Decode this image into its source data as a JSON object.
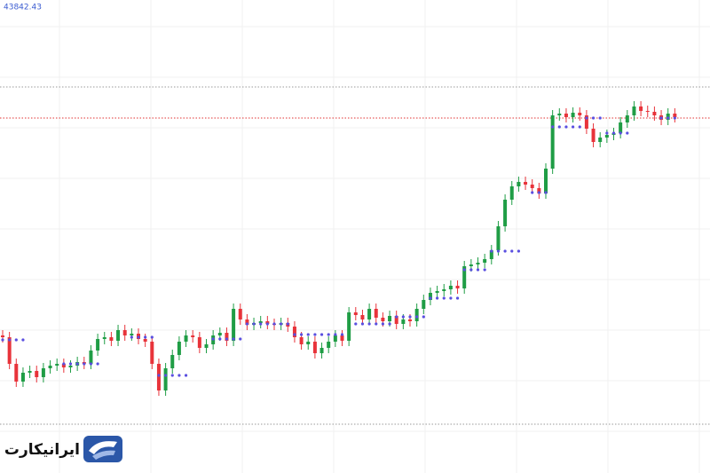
{
  "chart_data": {
    "type": "candlestick",
    "price_label": "43842.43",
    "watermark": "ایرانیکارت",
    "ylim": [
      38570,
      43900
    ],
    "up_color": "#1f9d45",
    "down_color": "#e8333a",
    "sar_color": "#5a4fe0",
    "levels": [
      {
        "value": 42920,
        "color": "#999999"
      },
      {
        "value": 42570,
        "color": "#e03030"
      },
      {
        "value": 39120,
        "color": "#999999"
      }
    ],
    "ohlc": [
      [
        40120,
        40180,
        40040,
        40100
      ],
      [
        40100,
        40160,
        39740,
        39800
      ],
      [
        39800,
        39860,
        39540,
        39600
      ],
      [
        39600,
        39760,
        39540,
        39700
      ],
      [
        39700,
        39780,
        39640,
        39720
      ],
      [
        39720,
        39780,
        39590,
        39650
      ],
      [
        39650,
        39810,
        39590,
        39750
      ],
      [
        39750,
        39840,
        39690,
        39780
      ],
      [
        39780,
        39860,
        39720,
        39800
      ],
      [
        39800,
        39860,
        39700,
        39760
      ],
      [
        39760,
        39840,
        39700,
        39780
      ],
      [
        39780,
        39880,
        39720,
        39820
      ],
      [
        39820,
        39880,
        39740,
        39800
      ],
      [
        39800,
        40010,
        39740,
        39950
      ],
      [
        39950,
        40140,
        39890,
        40080
      ],
      [
        40080,
        40160,
        40020,
        40100
      ],
      [
        40100,
        40160,
        40000,
        40060
      ],
      [
        40060,
        40240,
        40000,
        40180
      ],
      [
        40180,
        40240,
        40060,
        40120
      ],
      [
        40120,
        40200,
        40060,
        40140
      ],
      [
        40140,
        40200,
        40020,
        40080
      ],
      [
        40080,
        40140,
        39990,
        40050
      ],
      [
        40050,
        40110,
        39740,
        39800
      ],
      [
        39800,
        39860,
        39440,
        39500
      ],
      [
        39500,
        39810,
        39440,
        39750
      ],
      [
        39750,
        39960,
        39690,
        39900
      ],
      [
        39900,
        40110,
        39840,
        40050
      ],
      [
        40050,
        40180,
        39990,
        40120
      ],
      [
        40120,
        40180,
        40040,
        40100
      ],
      [
        40100,
        40160,
        39920,
        39980
      ],
      [
        39980,
        40080,
        39920,
        40020
      ],
      [
        40020,
        40180,
        39960,
        40120
      ],
      [
        40120,
        40210,
        40060,
        40150
      ],
      [
        40150,
        40210,
        40000,
        40060
      ],
      [
        40060,
        40480,
        40000,
        40420
      ],
      [
        40420,
        40480,
        40240,
        40300
      ],
      [
        40300,
        40360,
        40180,
        40240
      ],
      [
        40240,
        40320,
        40180,
        40260
      ],
      [
        40260,
        40340,
        40200,
        40280
      ],
      [
        40280,
        40340,
        40190,
        40250
      ],
      [
        40250,
        40310,
        40180,
        40240
      ],
      [
        40240,
        40320,
        40180,
        40260
      ],
      [
        40260,
        40320,
        40160,
        40220
      ],
      [
        40220,
        40280,
        40040,
        40100
      ],
      [
        40100,
        40160,
        39960,
        40020
      ],
      [
        40020,
        40110,
        39960,
        40050
      ],
      [
        40050,
        40110,
        39860,
        39920
      ],
      [
        39920,
        40040,
        39860,
        39980
      ],
      [
        39980,
        40110,
        39920,
        40050
      ],
      [
        40050,
        40180,
        39990,
        40120
      ],
      [
        40120,
        40180,
        40000,
        40060
      ],
      [
        40060,
        40440,
        40000,
        40380
      ],
      [
        40380,
        40440,
        40290,
        40350
      ],
      [
        40350,
        40410,
        40240,
        40300
      ],
      [
        40300,
        40480,
        40240,
        40420
      ],
      [
        40420,
        40480,
        40260,
        40320
      ],
      [
        40320,
        40380,
        40220,
        40280
      ],
      [
        40280,
        40400,
        40220,
        40340
      ],
      [
        40340,
        40400,
        40190,
        40250
      ],
      [
        40250,
        40360,
        40190,
        40300
      ],
      [
        40300,
        40360,
        40220,
        40280
      ],
      [
        40280,
        40480,
        40220,
        40420
      ],
      [
        40420,
        40580,
        40360,
        40520
      ],
      [
        40520,
        40660,
        40460,
        40600
      ],
      [
        40600,
        40680,
        40540,
        40620
      ],
      [
        40620,
        40700,
        40560,
        40640
      ],
      [
        40640,
        40740,
        40580,
        40680
      ],
      [
        40680,
        40740,
        40590,
        40650
      ],
      [
        40650,
        40960,
        40590,
        40900
      ],
      [
        40900,
        40980,
        40840,
        40920
      ],
      [
        40920,
        41000,
        40860,
        40940
      ],
      [
        40940,
        41040,
        40880,
        40980
      ],
      [
        40980,
        41140,
        40920,
        41080
      ],
      [
        41080,
        41410,
        41020,
        41350
      ],
      [
        41350,
        41710,
        41290,
        41650
      ],
      [
        41650,
        41860,
        41590,
        41800
      ],
      [
        41800,
        41910,
        41740,
        41850
      ],
      [
        41850,
        41910,
        41760,
        41820
      ],
      [
        41820,
        41880,
        41720,
        41780
      ],
      [
        41780,
        41840,
        41660,
        41720
      ],
      [
        41720,
        42060,
        41660,
        42000
      ],
      [
        42000,
        42660,
        41940,
        42600
      ],
      [
        42600,
        42680,
        42540,
        42620
      ],
      [
        42620,
        42680,
        42520,
        42580
      ],
      [
        42580,
        42690,
        42520,
        42630
      ],
      [
        42630,
        42690,
        42540,
        42600
      ],
      [
        42600,
        42660,
        42390,
        42450
      ],
      [
        42450,
        42510,
        42240,
        42300
      ],
      [
        42300,
        42410,
        42240,
        42350
      ],
      [
        42350,
        42440,
        42290,
        42380
      ],
      [
        42380,
        42460,
        42320,
        42400
      ],
      [
        42400,
        42580,
        42340,
        42520
      ],
      [
        42520,
        42660,
        42460,
        42600
      ],
      [
        42600,
        42760,
        42540,
        42700
      ],
      [
        42700,
        42760,
        42590,
        42650
      ],
      [
        42650,
        42710,
        42580,
        42640
      ],
      [
        42640,
        42700,
        42540,
        42600
      ],
      [
        42600,
        42660,
        42490,
        42550
      ],
      [
        42550,
        42680,
        42490,
        42620
      ],
      [
        42620,
        42680,
        42520,
        42580
      ]
    ],
    "sar": [
      40070,
      40070,
      40070,
      40070,
      null,
      null,
      null,
      null,
      null,
      39800,
      39800,
      39800,
      39800,
      39800,
      39800,
      null,
      null,
      null,
      null,
      40100,
      40100,
      40100,
      40100,
      39670,
      39670,
      39670,
      39670,
      39670,
      null,
      null,
      null,
      40080,
      40080,
      40080,
      40080,
      40080,
      40250,
      40250,
      40250,
      40250,
      40250,
      40250,
      40250,
      40130,
      40130,
      40130,
      40130,
      40130,
      40130,
      40130,
      40130,
      null,
      40250,
      40250,
      40250,
      40250,
      40250,
      40250,
      40330,
      40330,
      40330,
      40330,
      40330,
      40540,
      40540,
      40540,
      40540,
      40540,
      40860,
      40860,
      40860,
      40860,
      41070,
      41070,
      41070,
      41070,
      41070,
      null,
      41730,
      41730,
      41730,
      42470,
      42470,
      42470,
      42470,
      42470,
      42570,
      42570,
      42570,
      42400,
      42400,
      42400,
      42400,
      null,
      null,
      null,
      null,
      42570,
      42570,
      42570
    ]
  }
}
